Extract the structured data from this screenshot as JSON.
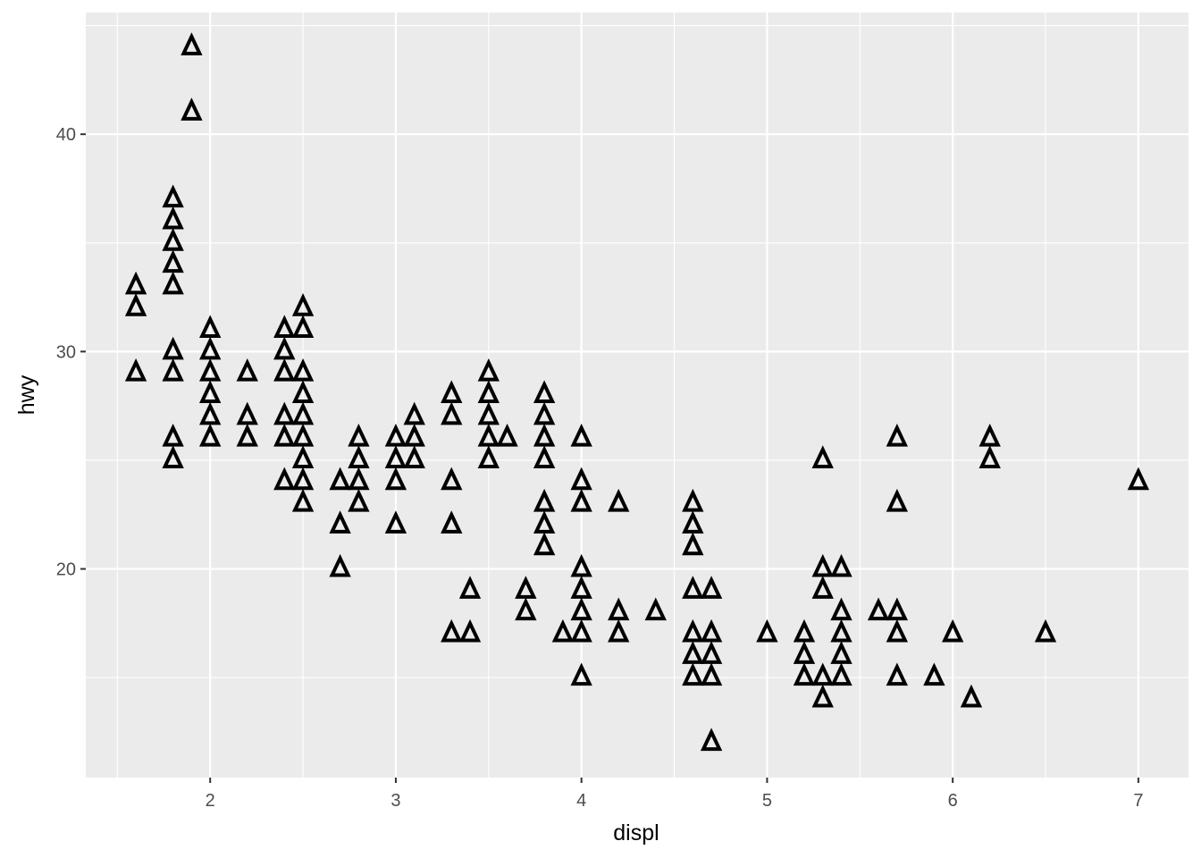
{
  "chart_data": {
    "type": "scatter",
    "xlabel": "displ",
    "ylabel": "hwy",
    "xlim": [
      1.33,
      7.27
    ],
    "ylim": [
      10.4,
      45.6
    ],
    "xticks": [
      2,
      3,
      4,
      5,
      6,
      7
    ],
    "yticks": [
      20,
      30,
      40
    ],
    "grid": true,
    "marker": "open-triangle",
    "colors": {
      "panel_background": "#ebebeb",
      "grid": "#ffffff",
      "marker": "#000000",
      "tick_label": "#4d4d4d",
      "tick_mark": "#333333"
    },
    "points": [
      [
        1.6,
        33
      ],
      [
        1.6,
        32
      ],
      [
        1.6,
        29
      ],
      [
        1.8,
        37
      ],
      [
        1.8,
        36
      ],
      [
        1.8,
        35
      ],
      [
        1.8,
        34
      ],
      [
        1.8,
        33
      ],
      [
        1.8,
        30
      ],
      [
        1.8,
        29
      ],
      [
        1.8,
        26
      ],
      [
        1.8,
        25
      ],
      [
        1.9,
        44
      ],
      [
        1.9,
        41
      ],
      [
        2.0,
        31
      ],
      [
        2.0,
        30
      ],
      [
        2.0,
        29
      ],
      [
        2.0,
        28
      ],
      [
        2.0,
        27
      ],
      [
        2.0,
        26
      ],
      [
        2.2,
        29
      ],
      [
        2.2,
        27
      ],
      [
        2.2,
        26
      ],
      [
        2.4,
        31
      ],
      [
        2.4,
        30
      ],
      [
        2.4,
        29
      ],
      [
        2.4,
        27
      ],
      [
        2.4,
        26
      ],
      [
        2.4,
        24
      ],
      [
        2.5,
        32
      ],
      [
        2.5,
        31
      ],
      [
        2.5,
        29
      ],
      [
        2.5,
        28
      ],
      [
        2.5,
        27
      ],
      [
        2.5,
        26
      ],
      [
        2.5,
        25
      ],
      [
        2.5,
        24
      ],
      [
        2.5,
        23
      ],
      [
        2.7,
        24
      ],
      [
        2.7,
        22
      ],
      [
        2.7,
        20
      ],
      [
        2.8,
        26
      ],
      [
        2.8,
        25
      ],
      [
        2.8,
        24
      ],
      [
        2.8,
        23
      ],
      [
        3.0,
        26
      ],
      [
        3.0,
        25
      ],
      [
        3.0,
        24
      ],
      [
        3.0,
        22
      ],
      [
        3.1,
        27
      ],
      [
        3.1,
        26
      ],
      [
        3.1,
        25
      ],
      [
        3.3,
        28
      ],
      [
        3.3,
        27
      ],
      [
        3.3,
        24
      ],
      [
        3.3,
        22
      ],
      [
        3.3,
        17
      ],
      [
        3.4,
        19
      ],
      [
        3.4,
        17
      ],
      [
        3.5,
        29
      ],
      [
        3.5,
        28
      ],
      [
        3.5,
        27
      ],
      [
        3.5,
        26
      ],
      [
        3.5,
        25
      ],
      [
        3.6,
        26
      ],
      [
        3.7,
        19
      ],
      [
        3.7,
        18
      ],
      [
        3.8,
        28
      ],
      [
        3.8,
        27
      ],
      [
        3.8,
        26
      ],
      [
        3.8,
        25
      ],
      [
        3.8,
        23
      ],
      [
        3.8,
        22
      ],
      [
        3.8,
        21
      ],
      [
        3.9,
        17
      ],
      [
        4.0,
        26
      ],
      [
        4.0,
        24
      ],
      [
        4.0,
        23
      ],
      [
        4.0,
        20
      ],
      [
        4.0,
        19
      ],
      [
        4.0,
        18
      ],
      [
        4.0,
        17
      ],
      [
        4.0,
        15
      ],
      [
        4.2,
        23
      ],
      [
        4.2,
        18
      ],
      [
        4.2,
        17
      ],
      [
        4.4,
        18
      ],
      [
        4.6,
        23
      ],
      [
        4.6,
        22
      ],
      [
        4.6,
        21
      ],
      [
        4.6,
        19
      ],
      [
        4.6,
        17
      ],
      [
        4.6,
        16
      ],
      [
        4.6,
        15
      ],
      [
        4.7,
        19
      ],
      [
        4.7,
        17
      ],
      [
        4.7,
        16
      ],
      [
        4.7,
        15
      ],
      [
        4.7,
        12
      ],
      [
        5.0,
        17
      ],
      [
        5.2,
        17
      ],
      [
        5.2,
        16
      ],
      [
        5.2,
        15
      ],
      [
        5.3,
        25
      ],
      [
        5.3,
        20
      ],
      [
        5.3,
        19
      ],
      [
        5.3,
        15
      ],
      [
        5.3,
        14
      ],
      [
        5.4,
        20
      ],
      [
        5.4,
        18
      ],
      [
        5.4,
        17
      ],
      [
        5.4,
        16
      ],
      [
        5.4,
        15
      ],
      [
        5.6,
        18
      ],
      [
        5.7,
        26
      ],
      [
        5.7,
        23
      ],
      [
        5.7,
        18
      ],
      [
        5.7,
        17
      ],
      [
        5.7,
        15
      ],
      [
        5.9,
        15
      ],
      [
        6.0,
        17
      ],
      [
        6.1,
        14
      ],
      [
        6.2,
        26
      ],
      [
        6.2,
        25
      ],
      [
        6.5,
        17
      ],
      [
        7.0,
        24
      ]
    ]
  }
}
